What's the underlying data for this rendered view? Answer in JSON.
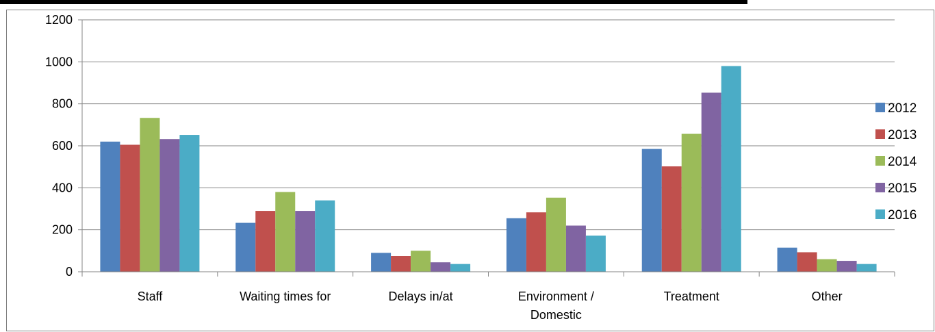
{
  "chart_data": {
    "type": "bar",
    "title": "",
    "xlabel": "",
    "ylabel": "",
    "ylim": [
      0,
      1200
    ],
    "yticks": [
      0,
      200,
      400,
      600,
      800,
      1000,
      1200
    ],
    "grid": true,
    "legend_position": "right",
    "categories": [
      [
        "Staff"
      ],
      [
        "Waiting times for"
      ],
      [
        "Delays in/at"
      ],
      [
        "Environment /",
        "Domestic"
      ],
      [
        "Treatment"
      ],
      [
        "Other"
      ]
    ],
    "series": [
      {
        "name": "2012",
        "color": "#4f81bd",
        "values": [
          620,
          233,
          90,
          255,
          585,
          115
        ]
      },
      {
        "name": "2013",
        "color": "#c0504d",
        "values": [
          605,
          290,
          75,
          283,
          502,
          93
        ]
      },
      {
        "name": "2014",
        "color": "#9bbb59",
        "values": [
          733,
          380,
          100,
          353,
          657,
          60
        ]
      },
      {
        "name": "2015",
        "color": "#8064a2",
        "values": [
          632,
          290,
          45,
          220,
          853,
          52
        ]
      },
      {
        "name": "2016",
        "color": "#4bacc6",
        "values": [
          652,
          340,
          37,
          172,
          980,
          37
        ]
      }
    ]
  }
}
